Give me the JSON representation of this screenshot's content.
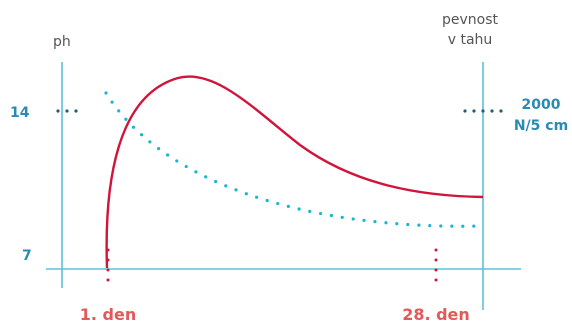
{
  "chart_data": {
    "type": "line",
    "y_axis_left": {
      "label": "ph",
      "tick": "14",
      "bottom_tick": "7"
    },
    "y_axis_right": {
      "label_lines": [
        "pevnost",
        "v tahu"
      ],
      "tick_lines": [
        "2000",
        "N/5 cm"
      ]
    },
    "x_labels": {
      "start": "1. den",
      "end": "28. den"
    },
    "colors": {
      "axis": "#5bc0de",
      "strength": "#d0143c",
      "ph": "#19b6cf",
      "label_dark": "#2a8ab0",
      "day_label": "#e05a5a",
      "tick_dots": "#1f5f7a"
    }
  }
}
